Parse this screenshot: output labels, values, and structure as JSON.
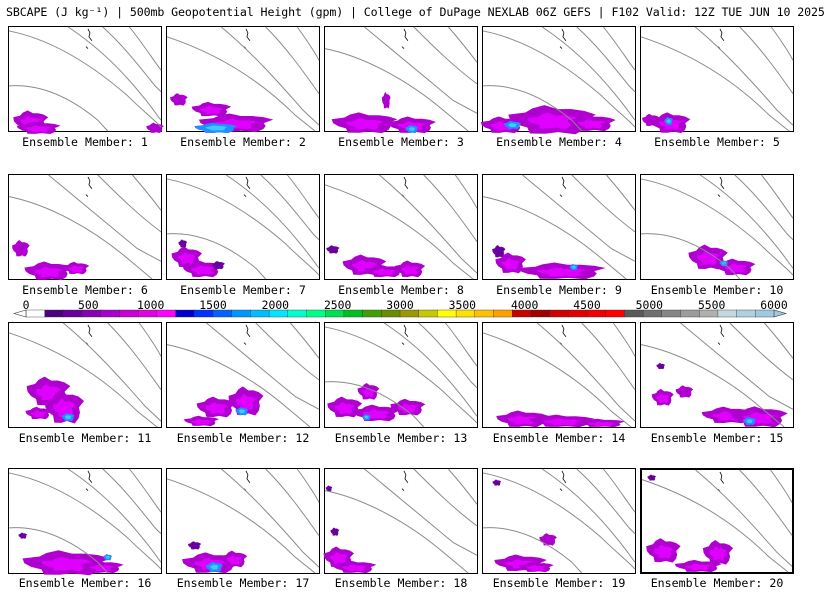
{
  "header": {
    "title": "SBCAPE (J kg⁻¹) | 500mb Geopotential Height (gpm) | College of DuPage NEXLAB 06Z GEFS | F102 Valid: 12Z TUE JUN 10 2025"
  },
  "members": [
    {
      "label": "Ensemble Member: 1"
    },
    {
      "label": "Ensemble Member: 2"
    },
    {
      "label": "Ensemble Member: 3"
    },
    {
      "label": "Ensemble Member: 4"
    },
    {
      "label": "Ensemble Member: 5"
    },
    {
      "label": "Ensemble Member: 6"
    },
    {
      "label": "Ensemble Member: 7"
    },
    {
      "label": "Ensemble Member: 8"
    },
    {
      "label": "Ensemble Member: 9"
    },
    {
      "label": "Ensemble Member: 10"
    },
    {
      "label": "Ensemble Member: 11"
    },
    {
      "label": "Ensemble Member: 12"
    },
    {
      "label": "Ensemble Member: 13"
    },
    {
      "label": "Ensemble Member: 14"
    },
    {
      "label": "Ensemble Member: 15"
    },
    {
      "label": "Ensemble Member: 16"
    },
    {
      "label": "Ensemble Member: 17"
    },
    {
      "label": "Ensemble Member: 18"
    },
    {
      "label": "Ensemble Member: 19"
    },
    {
      "label": "Ensemble Member: 20"
    }
  ],
  "colorbar": {
    "ticks": [
      "0",
      "500",
      "1000",
      "1500",
      "2000",
      "2500",
      "3000",
      "3500",
      "4000",
      "4500",
      "5000",
      "5500",
      "6000"
    ],
    "colors": [
      "#ffffff",
      "#4b0082",
      "#6a009a",
      "#8a00b5",
      "#a800cc",
      "#c800d8",
      "#e000e0",
      "#ff00ff",
      "#0000cd",
      "#0032ff",
      "#0064ff",
      "#0096ff",
      "#00beff",
      "#00e6ff",
      "#00ffcc",
      "#00ff88",
      "#00e050",
      "#00c020",
      "#40a000",
      "#6a8c00",
      "#9a9a00",
      "#c8c800",
      "#ffff00",
      "#ffe000",
      "#ffc000",
      "#ffa000",
      "#c80000",
      "#a00000",
      "#d00000",
      "#e00000",
      "#f00000",
      "#ff0000",
      "#5a5a5a",
      "#707070",
      "#868686",
      "#9c9c9c",
      "#b0b0b0",
      "#c4d8e0",
      "#b0d0e0",
      "#a0c8e0"
    ]
  },
  "cape_colors": {
    "low": "#6a00a0",
    "mid": "#b000d0",
    "high": "#e000ff",
    "peak": "#1e90ff",
    "core": "#40c8ff"
  }
}
